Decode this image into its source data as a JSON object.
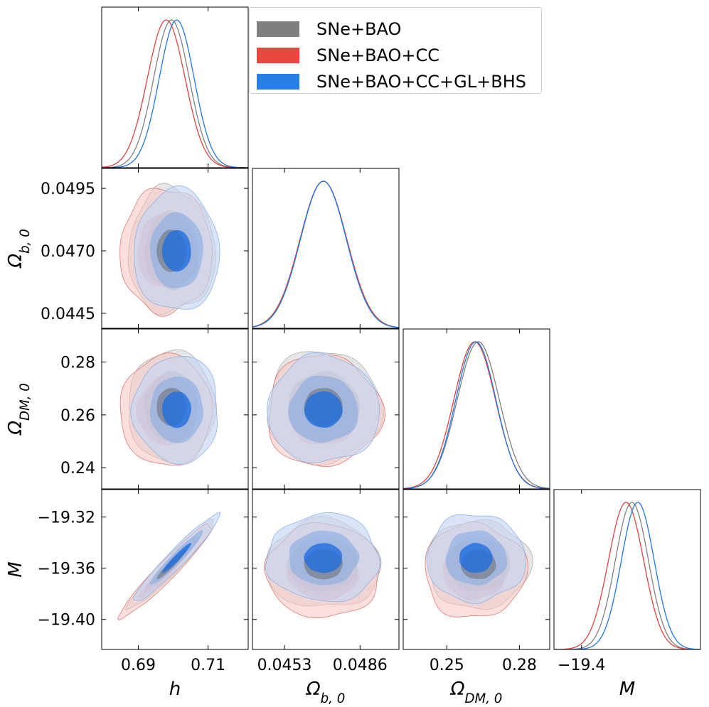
{
  "chart_data": {
    "type": "triangle-corner",
    "parameters": [
      {
        "id": "h",
        "label": "h",
        "range": [
          0.6795,
          0.7215
        ],
        "ticks": [
          0.69,
          0.71
        ],
        "tick_labels": [
          "0.69",
          "0.71"
        ]
      },
      {
        "id": "ob",
        "label": "Ωb,0",
        "range": [
          0.0439,
          0.0503
        ],
        "ticks": [
          0.0453,
          0.0486
        ],
        "tick_labels": [
          "0.0453",
          "0.0486"
        ]
      },
      {
        "id": "odm",
        "label": "ΩDM,0",
        "range": [
          0.232,
          0.2925
        ],
        "ticks": [
          0.25,
          0.28
        ],
        "tick_labels": [
          "0.25",
          "0.28"
        ]
      },
      {
        "id": "M",
        "label": "M",
        "range": [
          -19.4235,
          -19.2985
        ],
        "ticks": [
          -19.4
        ],
        "tick_labels": [
          "−19.4"
        ]
      }
    ],
    "y_axis_ticks": {
      "ob": {
        "ticks": [
          0.0495,
          0.047,
          0.0445
        ],
        "labels": [
          "0.0495",
          "0.0470",
          "0.0445"
        ]
      },
      "odm": {
        "ticks": [
          0.28,
          0.26,
          0.24
        ],
        "labels": [
          "0.28",
          "0.26",
          "0.24"
        ]
      },
      "M": {
        "ticks": [
          -19.32,
          -19.36,
          -19.4
        ],
        "labels": [
          "−19.32",
          "−19.36",
          "−19.40"
        ]
      }
    },
    "axis_labels": {
      "h_x": "h",
      "ob_x": "Ωb,0",
      "odm_x": "ΩDM,0",
      "M_x": "M",
      "ob_y": "Ωb,0",
      "odm_y": "ΩDM,0",
      "M_y": "M"
    },
    "series": [
      {
        "name": "SNe+BAO",
        "color": "#808080",
        "fill": "#c8c8c8",
        "mean": {
          "h": 0.6995,
          "ob": 0.047,
          "odm": 0.263,
          "M": -19.357
        },
        "sigma": {
          "h": 0.0051,
          "ob": 0.00102,
          "odm": 0.0087,
          "M": 0.0141
        },
        "rho": {
          "h_M": 0.96
        }
      },
      {
        "name": "SNe+BAO+CC",
        "color": "#e0453c",
        "fill": "#f8cdca",
        "mean": {
          "h": 0.698,
          "ob": 0.047,
          "odm": 0.2615,
          "M": -19.362
        },
        "sigma": {
          "h": 0.0054,
          "ob": 0.00102,
          "odm": 0.0086,
          "M": 0.015
        },
        "rho": {
          "h_M": 0.96
        }
      },
      {
        "name": "SNe+BAO+CC+GL+BHS",
        "color": "#1f77e8",
        "fill": "#1f6fe0",
        "mean": {
          "h": 0.701,
          "ob": 0.047,
          "odm": 0.262,
          "M": -19.352
        },
        "sigma": {
          "h": 0.005,
          "ob": 0.001,
          "odm": 0.0083,
          "M": 0.014
        },
        "rho": {
          "h_M": 0.96
        }
      }
    ]
  },
  "legend": {
    "items": [
      {
        "label": "SNe+BAO",
        "color": "#7f7f7f"
      },
      {
        "label": "SNe+BAO+CC",
        "color": "#e8483e"
      },
      {
        "label": "SNe+BAO+CC+GL+BHS",
        "color": "#2a7fe6"
      }
    ]
  }
}
